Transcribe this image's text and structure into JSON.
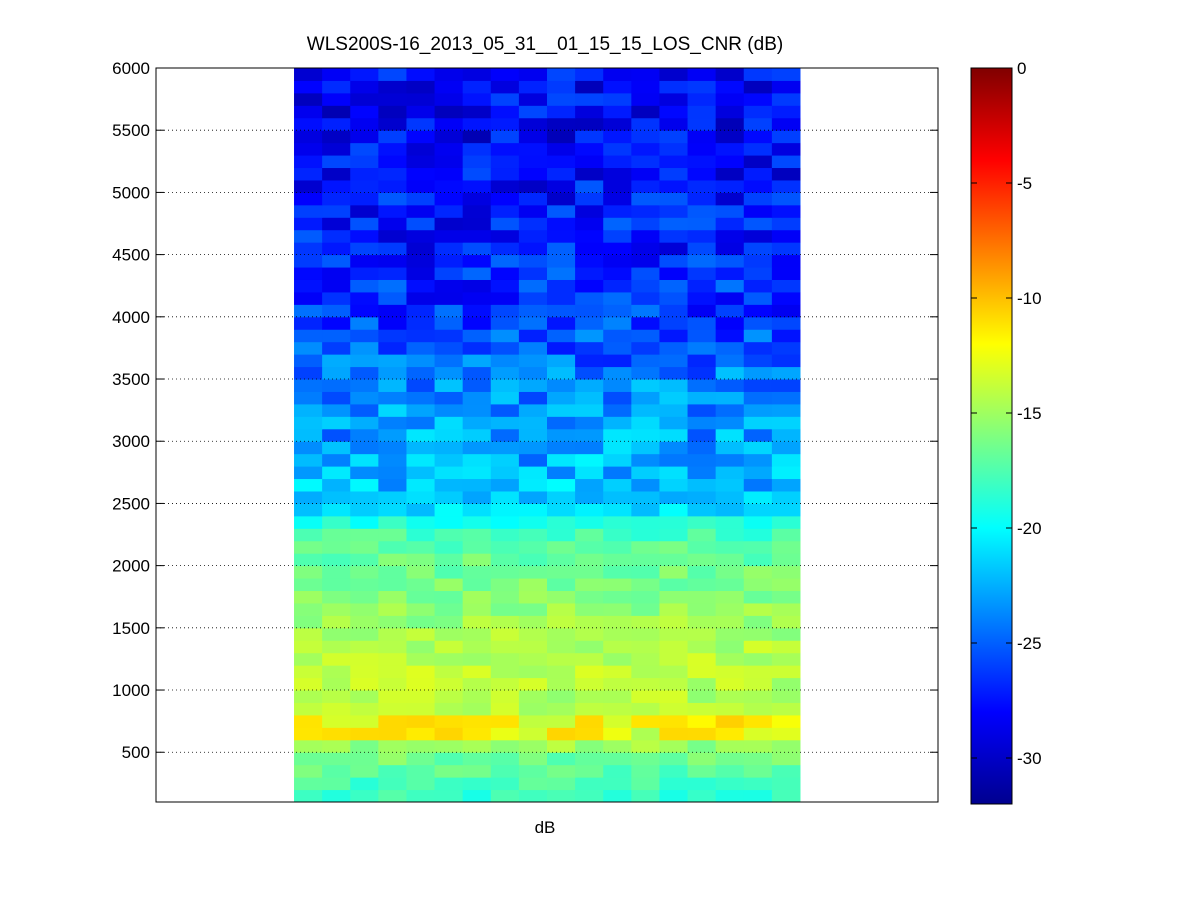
{
  "chart_data": {
    "type": "heatmap",
    "title": "WLS200S-16_2013_05_31__01_15_15_LOS_CNR (dB)",
    "xlabel": "dB",
    "ylabel": "",
    "ylim": [
      100,
      6000
    ],
    "yticks": [
      500,
      1000,
      1500,
      2000,
      2500,
      3000,
      3500,
      4000,
      4500,
      5000,
      5500,
      6000
    ],
    "grid": "dotted horizontal",
    "colormap": "jet",
    "colorbar": {
      "range": [
        -32,
        0
      ],
      "ticks": [
        0,
        -5,
        -10,
        -15,
        -20,
        -25,
        -30
      ]
    },
    "columns": 18,
    "range_gate_step": 100,
    "profile": [
      {
        "range": 150,
        "value": -18.5
      },
      {
        "range": 300,
        "value": -17.5
      },
      {
        "range": 500,
        "value": -16.0
      },
      {
        "range": 700,
        "value": -12.5
      },
      {
        "range": 900,
        "value": -14.5
      },
      {
        "range": 1200,
        "value": -14.0
      },
      {
        "range": 1500,
        "value": -15.0
      },
      {
        "range": 2000,
        "value": -16.5
      },
      {
        "range": 2300,
        "value": -18.0
      },
      {
        "range": 2400,
        "value": -20.5
      },
      {
        "range": 2500,
        "value": -21.5
      },
      {
        "range": 2800,
        "value": -22.5
      },
      {
        "range": 3000,
        "value": -23.0
      },
      {
        "range": 3500,
        "value": -24.0
      },
      {
        "range": 4000,
        "value": -26.0
      },
      {
        "range": 4500,
        "value": -27.0
      },
      {
        "range": 5000,
        "value": -27.5
      },
      {
        "range": 5500,
        "value": -28.0
      },
      {
        "range": 6000,
        "value": -28.0
      }
    ],
    "highlights": [
      {
        "range": 700,
        "value": -11.0
      }
    ]
  }
}
